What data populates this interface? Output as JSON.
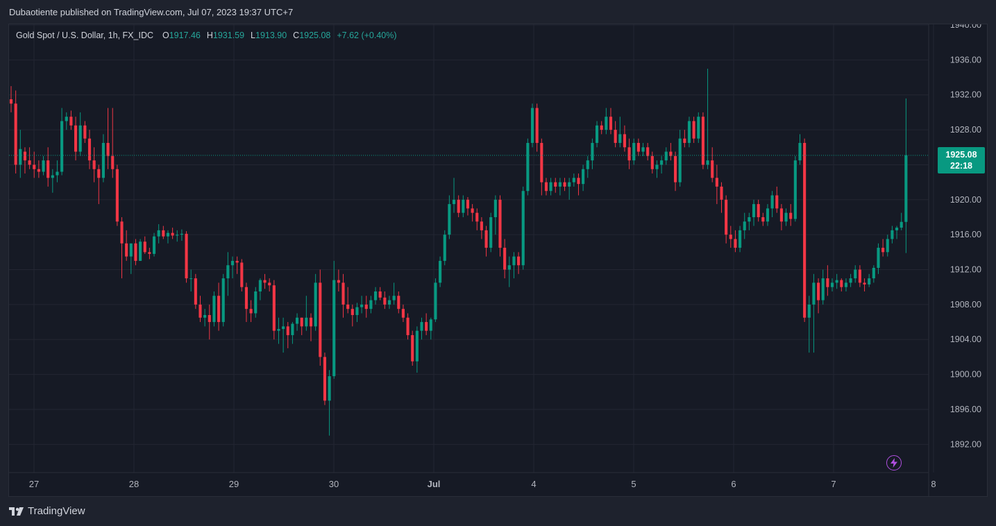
{
  "header": {
    "published": "Dubaotiente published on TradingView.com, Jul 07, 2023 19:37 UTC+7"
  },
  "legend": {
    "symbol": "Gold Spot / U.S. Dollar, 1h, FX_IDC",
    "o_label": "O",
    "o": "1917.46",
    "h_label": "H",
    "h": "1931.59",
    "l_label": "L",
    "l": "1913.90",
    "c_label": "C",
    "c": "1925.08",
    "change": "+7.62 (+0.40%)"
  },
  "price_tag": {
    "price": "1925.08",
    "countdown": "22:18"
  },
  "footer": {
    "brand": "TradingView"
  },
  "icons": {
    "logo": "tradingview-logo-icon",
    "alert": "lightning-icon"
  },
  "colors": {
    "up": "#089981",
    "down": "#f23645",
    "background": "#161a25",
    "grid": "#232632",
    "text": "#b2b5be"
  },
  "chart_data": {
    "type": "candlestick",
    "interval": "1h",
    "ylim": [
      1889,
      1941
    ],
    "y_ticks": [
      "1940.00",
      "1936.00",
      "1932.00",
      "1928.00",
      "1924.00",
      "1920.00",
      "1916.00",
      "1912.00",
      "1908.00",
      "1904.00",
      "1900.00",
      "1896.00",
      "1892.00"
    ],
    "y_tick_values": [
      1940,
      1936,
      1932,
      1928,
      1924,
      1920,
      1916,
      1912,
      1908,
      1904,
      1900,
      1896,
      1892
    ],
    "x_ticks": [
      {
        "label": "27",
        "day": 0
      },
      {
        "label": "28",
        "day": 1
      },
      {
        "label": "29",
        "day": 2
      },
      {
        "label": "30",
        "day": 3
      },
      {
        "label": "Jul",
        "day": 4
      },
      {
        "label": "4",
        "day": 5
      },
      {
        "label": "5",
        "day": 6
      },
      {
        "label": "6",
        "day": 7
      },
      {
        "label": "7",
        "day": 8
      },
      {
        "label": "8",
        "day": 9
      }
    ],
    "last_price": 1925.08,
    "days_shown": 9,
    "candles": [
      [
        1931.5,
        1933.0,
        1930.0,
        1931.0
      ],
      [
        1931.0,
        1932.5,
        1923.0,
        1924.0
      ],
      [
        1924.0,
        1928.0,
        1922.5,
        1925.8
      ],
      [
        1925.5,
        1926.0,
        1923.0,
        1924.5
      ],
      [
        1924.5,
        1926.0,
        1923.5,
        1924.0
      ],
      [
        1924.0,
        1925.5,
        1922.5,
        1923.5
      ],
      [
        1923.5,
        1924.5,
        1922.5,
        1923.2
      ],
      [
        1923.2,
        1925.0,
        1922.8,
        1924.5
      ],
      [
        1924.5,
        1926.0,
        1921.5,
        1922.5
      ],
      [
        1922.5,
        1923.5,
        1920.8,
        1922.8
      ],
      [
        1922.8,
        1924.5,
        1922.0,
        1923.2
      ],
      [
        1923.2,
        1930.5,
        1922.8,
        1929.0
      ],
      [
        1929.0,
        1930.0,
        1928.0,
        1929.5
      ],
      [
        1929.5,
        1930.2,
        1928.0,
        1928.5
      ],
      [
        1928.5,
        1929.5,
        1924.5,
        1925.5
      ],
      [
        1925.5,
        1930.0,
        1925.0,
        1928.5
      ],
      [
        1928.5,
        1929.0,
        1926.5,
        1927.0
      ],
      [
        1927.0,
        1928.0,
        1923.5,
        1924.5
      ],
      [
        1924.5,
        1926.0,
        1922.0,
        1923.5
      ],
      [
        1923.5,
        1924.0,
        1919.5,
        1922.5
      ],
      [
        1922.5,
        1927.5,
        1922.0,
        1926.5
      ],
      [
        1926.5,
        1930.5,
        1923.5,
        1925.0
      ],
      [
        1925.0,
        1930.5,
        1922.5,
        1923.5
      ],
      [
        1923.5,
        1924.0,
        1917.0,
        1917.5
      ],
      [
        1917.5,
        1918.0,
        1911.0,
        1915.0
      ],
      [
        1915.0,
        1916.5,
        1913.0,
        1913.5
      ],
      [
        1913.5,
        1914.5,
        1911.5,
        1915.0
      ],
      [
        1915.0,
        1915.5,
        1912.5,
        1913.0
      ],
      [
        1913.0,
        1915.5,
        1913.0,
        1915.2
      ],
      [
        1915.2,
        1915.8,
        1913.8,
        1914.0
      ],
      [
        1914.0,
        1914.5,
        1913.2,
        1913.8
      ],
      [
        1913.8,
        1916.2,
        1913.5,
        1915.8
      ],
      [
        1915.8,
        1917.2,
        1915.0,
        1916.5
      ],
      [
        1916.5,
        1917.0,
        1915.5,
        1915.8
      ],
      [
        1915.8,
        1916.5,
        1915.0,
        1916.2
      ],
      [
        1916.2,
        1916.8,
        1915.5,
        1915.9
      ],
      [
        1915.9,
        1916.5,
        1915.2,
        1916.0
      ],
      [
        1916.0,
        1916.6,
        1915.3,
        1916.1
      ],
      [
        1916.1,
        1916.4,
        1910.5,
        1911.0
      ],
      [
        1911.0,
        1912.0,
        1909.5,
        1911.0
      ],
      [
        1911.0,
        1911.5,
        1907.5,
        1908.0
      ],
      [
        1908.0,
        1909.0,
        1906.0,
        1906.5
      ],
      [
        1906.5,
        1907.5,
        1905.5,
        1906.8
      ],
      [
        1906.8,
        1908.0,
        1904.0,
        1906.0
      ],
      [
        1906.0,
        1909.5,
        1905.5,
        1909.0
      ],
      [
        1909.0,
        1910.5,
        1905.0,
        1906.0
      ],
      [
        1906.0,
        1911.5,
        1905.5,
        1911.0
      ],
      [
        1911.0,
        1914.0,
        1909.0,
        1912.5
      ],
      [
        1912.5,
        1913.5,
        1911.0,
        1913.0
      ],
      [
        1913.0,
        1913.5,
        1911.5,
        1912.8
      ],
      [
        1912.8,
        1913.2,
        1909.5,
        1910.0
      ],
      [
        1910.0,
        1910.5,
        1906.0,
        1907.5
      ],
      [
        1907.5,
        1908.5,
        1906.0,
        1907.0
      ],
      [
        1907.0,
        1910.0,
        1906.5,
        1909.5
      ],
      [
        1909.5,
        1911.0,
        1908.5,
        1910.8
      ],
      [
        1910.8,
        1911.5,
        1909.8,
        1910.5
      ],
      [
        1910.5,
        1911.0,
        1909.5,
        1910.2
      ],
      [
        1910.2,
        1910.8,
        1904.0,
        1905.0
      ],
      [
        1905.0,
        1906.5,
        1903.5,
        1905.2
      ],
      [
        1905.2,
        1906.5,
        1902.5,
        1905.5
      ],
      [
        1905.5,
        1906.0,
        1903.0,
        1904.5
      ],
      [
        1904.5,
        1906.0,
        1903.5,
        1905.8
      ],
      [
        1905.8,
        1907.0,
        1905.0,
        1906.5
      ],
      [
        1906.5,
        1906.5,
        1904.5,
        1905.5
      ],
      [
        1905.5,
        1909.0,
        1905.0,
        1906.5
      ],
      [
        1906.5,
        1907.0,
        1903.8,
        1905.5
      ],
      [
        1905.5,
        1911.5,
        1905.0,
        1910.5
      ],
      [
        1910.5,
        1912.0,
        1901.0,
        1902.0
      ],
      [
        1902.0,
        1902.5,
        1896.5,
        1897.0
      ],
      [
        1897.0,
        1900.5,
        1893.0,
        1899.8
      ],
      [
        1899.8,
        1913.0,
        1899.5,
        1910.8
      ],
      [
        1910.8,
        1912.0,
        1909.5,
        1910.5
      ],
      [
        1910.5,
        1911.5,
        1906.5,
        1908.0
      ],
      [
        1908.0,
        1910.0,
        1907.0,
        1907.5
      ],
      [
        1907.5,
        1908.0,
        1905.5,
        1906.8
      ],
      [
        1906.8,
        1908.2,
        1906.0,
        1907.7
      ],
      [
        1907.7,
        1909.0,
        1907.0,
        1908.0
      ],
      [
        1908.0,
        1909.0,
        1906.5,
        1907.5
      ],
      [
        1907.5,
        1909.0,
        1907.0,
        1908.5
      ],
      [
        1908.5,
        1910.0,
        1908.0,
        1909.5
      ],
      [
        1909.5,
        1910.0,
        1908.5,
        1908.8
      ],
      [
        1908.8,
        1909.5,
        1907.5,
        1908.0
      ],
      [
        1908.0,
        1909.0,
        1907.5,
        1908.5
      ],
      [
        1908.5,
        1910.5,
        1908.0,
        1909.0
      ],
      [
        1909.0,
        1909.5,
        1907.0,
        1907.5
      ],
      [
        1907.5,
        1908.0,
        1906.0,
        1906.5
      ],
      [
        1906.5,
        1907.0,
        1904.0,
        1904.5
      ],
      [
        1904.5,
        1905.0,
        1901.0,
        1901.5
      ],
      [
        1901.5,
        1905.5,
        1900.2,
        1905.0
      ],
      [
        1905.0,
        1906.5,
        1904.0,
        1906.0
      ],
      [
        1906.0,
        1907.0,
        1904.5,
        1905.0
      ],
      [
        1905.0,
        1906.5,
        1904.0,
        1906.3
      ],
      [
        1906.3,
        1911.0,
        1906.0,
        1910.5
      ],
      [
        1910.5,
        1913.5,
        1910.0,
        1913.0
      ],
      [
        1913.0,
        1916.5,
        1912.5,
        1916.0
      ],
      [
        1916.0,
        1920.5,
        1915.5,
        1919.5
      ],
      [
        1919.5,
        1922.5,
        1918.5,
        1920.0
      ],
      [
        1920.0,
        1920.5,
        1918.0,
        1918.5
      ],
      [
        1918.5,
        1920.5,
        1918.0,
        1920.0
      ],
      [
        1920.0,
        1920.3,
        1918.2,
        1919.0
      ],
      [
        1919.0,
        1919.5,
        1917.5,
        1918.5
      ],
      [
        1918.5,
        1919.0,
        1916.5,
        1917.5
      ],
      [
        1917.5,
        1918.0,
        1915.5,
        1916.5
      ],
      [
        1916.5,
        1917.0,
        1913.5,
        1914.5
      ],
      [
        1914.5,
        1918.5,
        1914.0,
        1918.0
      ],
      [
        1918.0,
        1920.5,
        1916.0,
        1920.0
      ],
      [
        1920.0,
        1920.5,
        1913.5,
        1914.5
      ],
      [
        1914.5,
        1915.5,
        1911.0,
        1912.0
      ],
      [
        1912.0,
        1913.5,
        1910.0,
        1912.5
      ],
      [
        1912.5,
        1914.0,
        1911.0,
        1913.5
      ],
      [
        1913.5,
        1914.0,
        1911.5,
        1912.5
      ],
      [
        1912.5,
        1921.5,
        1912.0,
        1921.0
      ],
      [
        1921.0,
        1927.0,
        1920.5,
        1926.5
      ],
      [
        1926.5,
        1931.0,
        1926.0,
        1930.5
      ],
      [
        1930.5,
        1931.0,
        1925.5,
        1926.5
      ],
      [
        1926.5,
        1927.0,
        1920.5,
        1922.0
      ],
      [
        1922.0,
        1922.5,
        1920.5,
        1921.0
      ],
      [
        1921.0,
        1922.5,
        1920.5,
        1922.0
      ],
      [
        1922.0,
        1922.5,
        1920.8,
        1921.5
      ],
      [
        1921.5,
        1922.5,
        1920.5,
        1922.0
      ],
      [
        1922.0,
        1922.5,
        1921.0,
        1921.5
      ],
      [
        1921.5,
        1922.5,
        1920.0,
        1922.0
      ],
      [
        1922.0,
        1923.0,
        1921.5,
        1922.5
      ],
      [
        1922.5,
        1923.0,
        1920.5,
        1921.8
      ],
      [
        1921.8,
        1924.0,
        1921.0,
        1923.5
      ],
      [
        1923.5,
        1925.0,
        1922.5,
        1924.5
      ],
      [
        1924.5,
        1927.0,
        1923.5,
        1926.5
      ],
      [
        1926.5,
        1929.0,
        1926.0,
        1928.5
      ],
      [
        1928.5,
        1929.0,
        1927.5,
        1928.0
      ],
      [
        1928.0,
        1930.5,
        1927.5,
        1929.5
      ],
      [
        1929.5,
        1930.5,
        1927.5,
        1928.0
      ],
      [
        1928.0,
        1929.0,
        1926.0,
        1926.5
      ],
      [
        1926.5,
        1929.5,
        1926.0,
        1927.5
      ],
      [
        1927.5,
        1928.5,
        1925.5,
        1926.0
      ],
      [
        1926.0,
        1927.0,
        1923.5,
        1924.5
      ],
      [
        1924.5,
        1927.0,
        1924.0,
        1926.5
      ],
      [
        1926.5,
        1927.0,
        1925.0,
        1925.5
      ],
      [
        1925.5,
        1926.5,
        1925.0,
        1926.0
      ],
      [
        1926.0,
        1926.5,
        1924.5,
        1925.0
      ],
      [
        1925.0,
        1925.5,
        1923.0,
        1923.5
      ],
      [
        1923.5,
        1924.5,
        1922.5,
        1924.0
      ],
      [
        1924.0,
        1925.0,
        1923.0,
        1924.5
      ],
      [
        1924.5,
        1926.0,
        1924.0,
        1925.5
      ],
      [
        1925.5,
        1926.5,
        1924.5,
        1925.0
      ],
      [
        1925.0,
        1925.5,
        1921.0,
        1922.0
      ],
      [
        1922.0,
        1928.0,
        1921.5,
        1927.0
      ],
      [
        1927.0,
        1928.0,
        1926.0,
        1926.5
      ],
      [
        1926.5,
        1929.5,
        1926.0,
        1929.0
      ],
      [
        1929.0,
        1929.5,
        1926.5,
        1927.0
      ],
      [
        1927.0,
        1930.0,
        1926.5,
        1929.5
      ],
      [
        1929.5,
        1930.0,
        1923.5,
        1924.0
      ],
      [
        1924.0,
        1935.0,
        1923.5,
        1924.5
      ],
      [
        1924.5,
        1926.0,
        1922.0,
        1922.5
      ],
      [
        1922.5,
        1924.0,
        1919.5,
        1921.5
      ],
      [
        1921.5,
        1922.0,
        1918.5,
        1920.0
      ],
      [
        1920.0,
        1920.5,
        1915.0,
        1916.0
      ],
      [
        1916.0,
        1917.0,
        1914.5,
        1915.5
      ],
      [
        1915.5,
        1916.5,
        1914.0,
        1914.5
      ],
      [
        1914.5,
        1917.0,
        1914.0,
        1916.5
      ],
      [
        1916.5,
        1918.5,
        1915.5,
        1917.5
      ],
      [
        1917.5,
        1918.5,
        1916.5,
        1918.0
      ],
      [
        1918.0,
        1920.0,
        1917.0,
        1919.5
      ],
      [
        1919.5,
        1920.0,
        1917.5,
        1918.0
      ],
      [
        1918.0,
        1918.5,
        1917.0,
        1917.5
      ],
      [
        1917.5,
        1919.5,
        1917.0,
        1919.0
      ],
      [
        1919.0,
        1921.0,
        1918.0,
        1920.5
      ],
      [
        1920.5,
        1921.5,
        1918.5,
        1919.0
      ],
      [
        1919.0,
        1919.5,
        1916.5,
        1917.5
      ],
      [
        1917.5,
        1919.0,
        1917.0,
        1918.5
      ],
      [
        1918.5,
        1919.5,
        1917.0,
        1917.8
      ],
      [
        1917.8,
        1925.0,
        1917.5,
        1924.5
      ],
      [
        1924.5,
        1927.5,
        1924.0,
        1926.5
      ],
      [
        1926.5,
        1927.0,
        1906.0,
        1906.5
      ],
      [
        1906.5,
        1909.0,
        1902.5,
        1908.0
      ],
      [
        1908.0,
        1911.5,
        1902.5,
        1910.5
      ],
      [
        1910.5,
        1911.0,
        1907.0,
        1908.5
      ],
      [
        1908.5,
        1912.0,
        1908.0,
        1911.0
      ],
      [
        1911.0,
        1912.5,
        1909.0,
        1910.0
      ],
      [
        1910.0,
        1911.0,
        1909.5,
        1910.5
      ],
      [
        1910.5,
        1911.5,
        1909.8,
        1910.8
      ],
      [
        1910.8,
        1911.0,
        1909.5,
        1910.0
      ],
      [
        1910.0,
        1911.0,
        1909.5,
        1910.5
      ],
      [
        1910.5,
        1911.5,
        1910.0,
        1911.0
      ],
      [
        1911.0,
        1912.5,
        1910.5,
        1912.0
      ],
      [
        1912.0,
        1912.5,
        1910.0,
        1910.5
      ],
      [
        1910.5,
        1911.0,
        1909.5,
        1910.3
      ],
      [
        1910.3,
        1911.5,
        1910.0,
        1911.0
      ],
      [
        1911.0,
        1912.5,
        1910.5,
        1912.2
      ],
      [
        1912.2,
        1915.0,
        1911.5,
        1914.5
      ],
      [
        1914.5,
        1915.5,
        1913.5,
        1914.0
      ],
      [
        1914.0,
        1916.0,
        1913.5,
        1915.5
      ],
      [
        1915.5,
        1917.0,
        1915.0,
        1916.5
      ],
      [
        1916.5,
        1917.0,
        1915.5,
        1916.8
      ],
      [
        1916.8,
        1918.5,
        1916.5,
        1917.46
      ],
      [
        1917.46,
        1931.59,
        1913.9,
        1925.08
      ]
    ]
  }
}
